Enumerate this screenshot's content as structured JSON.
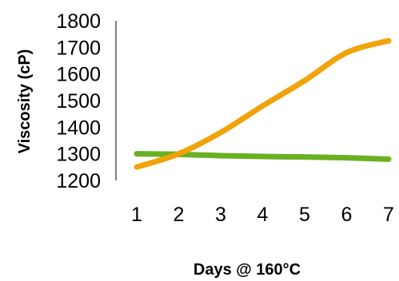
{
  "chart_data": {
    "type": "line",
    "title": "",
    "xlabel": "Days @ 160°C",
    "ylabel": "Viscosity (cP)",
    "x": [
      1,
      2,
      3,
      4,
      5,
      6,
      7
    ],
    "x_tick_labels": [
      "1",
      "2",
      "3",
      "4",
      "5",
      "6",
      "7"
    ],
    "y_tick_labels": [
      "1200",
      "1300",
      "1400",
      "1500",
      "1600",
      "1700",
      "1800"
    ],
    "ylim": [
      1200,
      1800
    ],
    "grid": false,
    "legend": "none",
    "series": [
      {
        "color": "#f0a30a",
        "values": [
          1250,
          1300,
          1380,
          1480,
          1575,
          1680,
          1725
        ]
      },
      {
        "color": "#6ab023",
        "values": [
          1300,
          1298,
          1293,
          1290,
          1288,
          1285,
          1280
        ]
      }
    ]
  }
}
